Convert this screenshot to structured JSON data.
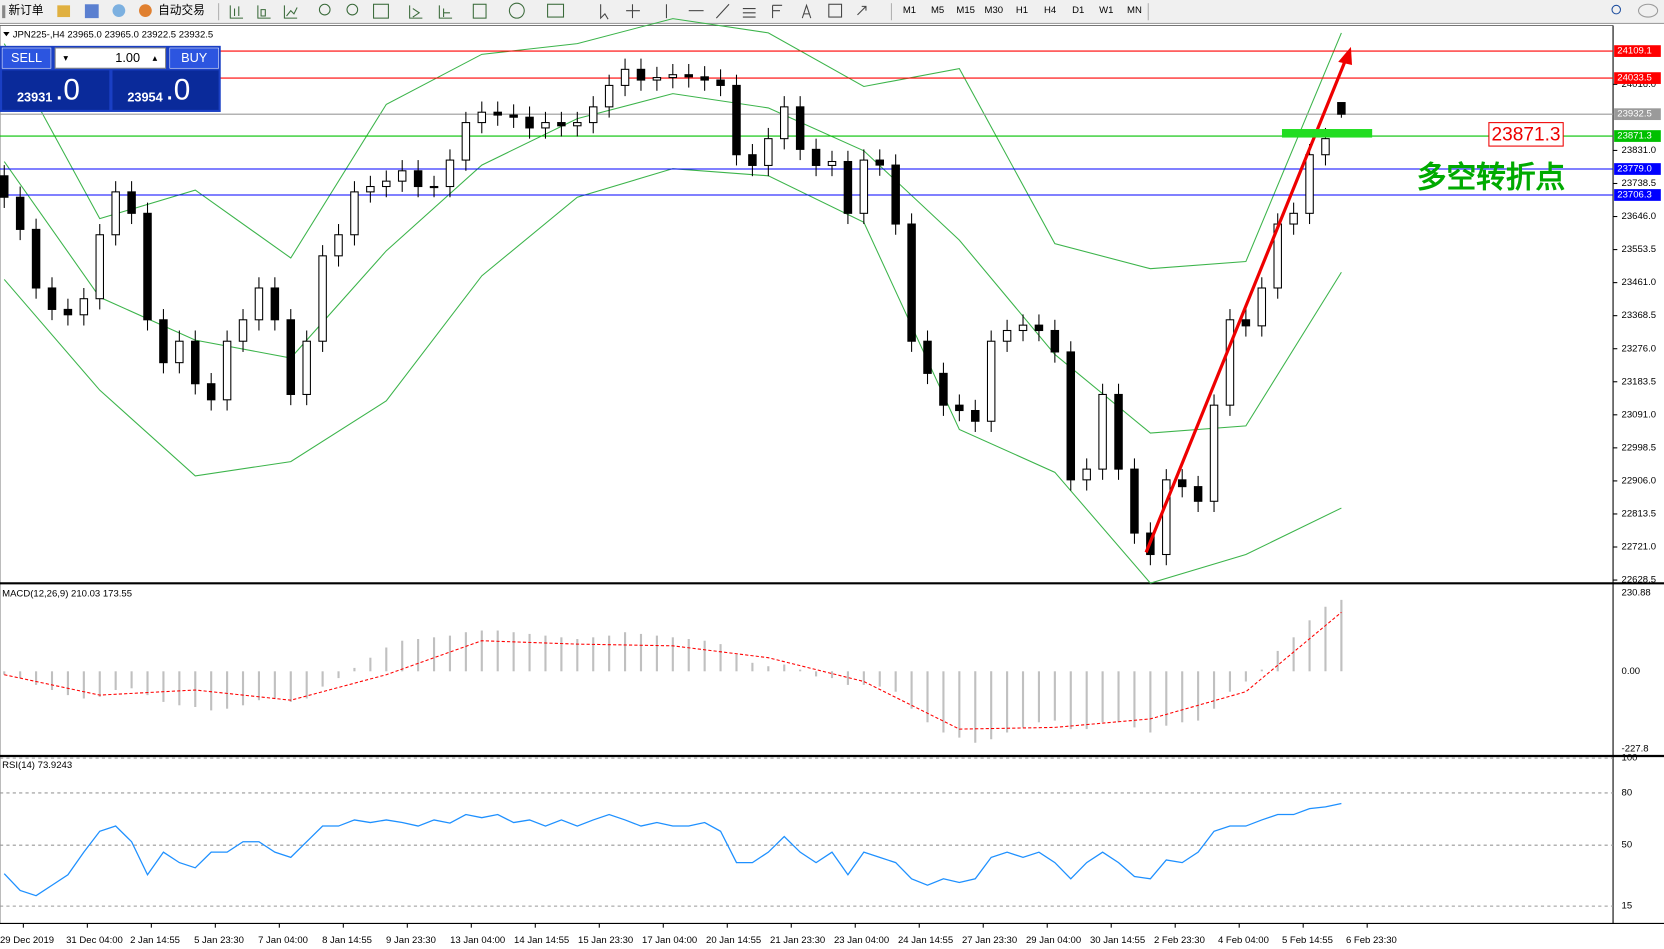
{
  "toolbar": {
    "new_order": "新订单",
    "auto_trading": "自动交易",
    "timeframes": [
      "M1",
      "M5",
      "M15",
      "M30",
      "H1",
      "H4",
      "D1",
      "W1",
      "MN"
    ]
  },
  "trade_panel": {
    "sell": "SELL",
    "buy": "BUY",
    "volume": "1.00",
    "sell_price": "23931",
    "sell_price_decimal": ".0",
    "buy_price": "23954",
    "buy_price_decimal": ".0"
  },
  "chart_data": [
    {
      "type": "candlestick",
      "title": "JPN225-,H4 23965.0 23965.0 23922.5 23932.5",
      "up_color": "#ffffff",
      "down_color": "#000000",
      "candles": [
        [
          23760,
          23790,
          23670,
          23700
        ],
        [
          23700,
          23730,
          23580,
          23610
        ],
        [
          23610,
          23640,
          23416,
          23446
        ],
        [
          23446,
          23476,
          23356,
          23386
        ],
        [
          23386,
          23416,
          23341,
          23371
        ],
        [
          23371,
          23446,
          23341,
          23416
        ],
        [
          23416,
          23625,
          23386,
          23595
        ],
        [
          23595,
          23745,
          23565,
          23715
        ],
        [
          23715,
          23745,
          23625,
          23655
        ],
        [
          23655,
          23685,
          23327,
          23357
        ],
        [
          23357,
          23387,
          23207,
          23237
        ],
        [
          23237,
          23327,
          23207,
          23297
        ],
        [
          23297,
          23327,
          23148,
          23178
        ],
        [
          23178,
          23208,
          23103,
          23133
        ],
        [
          23133,
          23327,
          23103,
          23297
        ],
        [
          23297,
          23387,
          23267,
          23357
        ],
        [
          23357,
          23476,
          23327,
          23446
        ],
        [
          23446,
          23476,
          23327,
          23357
        ],
        [
          23357,
          23387,
          23118,
          23148
        ],
        [
          23148,
          23327,
          23118,
          23297
        ],
        [
          23297,
          23566,
          23267,
          23536
        ],
        [
          23536,
          23625,
          23506,
          23595
        ],
        [
          23595,
          23745,
          23565,
          23715
        ],
        [
          23715,
          23760,
          23685,
          23730
        ],
        [
          23730,
          23775,
          23700,
          23745
        ],
        [
          23745,
          23804,
          23715,
          23774
        ],
        [
          23774,
          23804,
          23700,
          23730
        ],
        [
          23730,
          23760,
          23700,
          23730
        ],
        [
          23730,
          23834,
          23700,
          23804
        ],
        [
          23804,
          23939,
          23774,
          23909
        ],
        [
          23909,
          23968,
          23879,
          23938
        ],
        [
          23938,
          23968,
          23900,
          23930
        ],
        [
          23930,
          23960,
          23894,
          23924
        ],
        [
          23924,
          23954,
          23864,
          23894
        ],
        [
          23894,
          23939,
          23864,
          23909
        ],
        [
          23909,
          23939,
          23870,
          23900
        ],
        [
          23900,
          23939,
          23870,
          23909
        ],
        [
          23909,
          23983,
          23879,
          23953
        ],
        [
          23953,
          24043,
          23923,
          24013
        ],
        [
          24013,
          24088,
          23983,
          24058
        ],
        [
          24058,
          24088,
          23998,
          24028
        ],
        [
          24028,
          24065,
          23998,
          24035
        ],
        [
          24035,
          24073,
          24005,
          24043
        ],
        [
          24043,
          24073,
          24007,
          24037
        ],
        [
          24037,
          24067,
          23998,
          24028
        ],
        [
          24028,
          24058,
          23983,
          24013
        ],
        [
          24013,
          24043,
          23789,
          23819
        ],
        [
          23819,
          23849,
          23759,
          23789
        ],
        [
          23789,
          23894,
          23759,
          23864
        ],
        [
          23864,
          23983,
          23834,
          23953
        ],
        [
          23953,
          23983,
          23804,
          23834
        ],
        [
          23834,
          23864,
          23759,
          23789
        ],
        [
          23789,
          23830,
          23759,
          23800
        ],
        [
          23800,
          23830,
          23625,
          23655
        ],
        [
          23655,
          23834,
          23625,
          23804
        ],
        [
          23804,
          23834,
          23760,
          23790
        ],
        [
          23790,
          23820,
          23595,
          23625
        ],
        [
          23625,
          23655,
          23267,
          23297
        ],
        [
          23297,
          23327,
          23177,
          23207
        ],
        [
          23207,
          23237,
          23088,
          23118
        ],
        [
          23118,
          23148,
          23073,
          23103
        ],
        [
          23103,
          23133,
          23043,
          23073
        ],
        [
          23073,
          23327,
          23043,
          23297
        ],
        [
          23297,
          23357,
          23267,
          23327
        ],
        [
          23327,
          23372,
          23297,
          23342
        ],
        [
          23342,
          23372,
          23297,
          23327
        ],
        [
          23327,
          23357,
          23237,
          23267
        ],
        [
          23267,
          23297,
          22879,
          22909
        ],
        [
          22909,
          22969,
          22879,
          22939
        ],
        [
          22939,
          23178,
          22909,
          23148
        ],
        [
          23148,
          23178,
          22909,
          22939
        ],
        [
          22939,
          22969,
          22730,
          22760
        ],
        [
          22760,
          22790,
          22670,
          22700
        ],
        [
          22700,
          22939,
          22670,
          22909
        ],
        [
          22909,
          22939,
          22860,
          22890
        ],
        [
          22890,
          22920,
          22819,
          22849
        ],
        [
          22849,
          23148,
          22819,
          23118
        ],
        [
          23118,
          23387,
          23088,
          23357
        ],
        [
          23357,
          23387,
          23310,
          23340
        ],
        [
          23340,
          23476,
          23310,
          23446
        ],
        [
          23446,
          23655,
          23416,
          23625
        ],
        [
          23625,
          23685,
          23595,
          23655
        ],
        [
          23655,
          23849,
          23625,
          23819
        ],
        [
          23819,
          23894,
          23789,
          23864
        ],
        [
          23965,
          23965,
          23922.5,
          23932.5
        ]
      ],
      "bands": {
        "color": "#3cb44b",
        "x": [
          0,
          6,
          12,
          18,
          24,
          30,
          36,
          42,
          48,
          54,
          60,
          66,
          72,
          78,
          84
        ],
        "upper": [
          24130,
          23640,
          23720,
          23530,
          23960,
          24100,
          24130,
          24200,
          24160,
          24010,
          24060,
          23570,
          23500,
          23520,
          24160
        ],
        "middle": [
          23800,
          23420,
          23300,
          23250,
          23550,
          23790,
          23920,
          23990,
          23950,
          23830,
          23580,
          23260,
          23040,
          23060,
          23490
        ],
        "lower": [
          23470,
          23160,
          22920,
          22960,
          23130,
          23480,
          23700,
          23780,
          23760,
          23630,
          23050,
          22930,
          22620,
          22700,
          22830
        ]
      },
      "levels": [
        {
          "value": 24109.1,
          "color": "#ff0000"
        },
        {
          "value": 24033.5,
          "color": "#ff0000"
        },
        {
          "value": 23932.5,
          "color": "#9a9a9a"
        },
        {
          "value": 23871.3,
          "color": "#00c000"
        },
        {
          "value": 23779,
          "label": "23779.0",
          "color": "#0000ff"
        },
        {
          "value": 23706.3,
          "color": "#0000ff"
        }
      ],
      "callout": "23871.3",
      "pivot_text": "多空转折点",
      "ylim": [
        22622.5,
        24171.5
      ],
      "yticks": [
        {
          "value": 24016,
          "label": "24016.0"
        },
        {
          "value": 23831,
          "label": "23831.0"
        },
        23738.5,
        {
          "value": 23646,
          "label": "23646.0"
        },
        23553.5,
        {
          "value": 23461,
          "label": "23461.0"
        },
        23368.5,
        {
          "value": 23276,
          "label": "23276.0"
        },
        23183.5,
        {
          "value": 23091,
          "label": "23091.0"
        },
        22998.5,
        {
          "value": 22906,
          "label": "22906.0"
        },
        22813.5,
        {
          "value": 22721,
          "label": "22721.0"
        },
        22628.5
      ],
      "x_labels": [
        "29 Dec 2019",
        "31 Dec 04:00",
        "2 Jan 14:55",
        "5 Jan 23:30",
        "7 Jan 04:00",
        "8 Jan 14:55",
        "9 Jan 23:30",
        "13 Jan 04:00",
        "14 Jan 14:55",
        "15 Jan 23:30",
        "17 Jan 04:00",
        "20 Jan 14:55",
        "21 Jan 23:30",
        "23 Jan 04:00",
        "24 Jan 14:55",
        "27 Jan 23:30",
        "29 Jan 04:00",
        "30 Jan 14:55",
        "2 Feb 23:30",
        "4 Feb 04:00",
        "5 Feb 14:55",
        "6 Feb 23:30"
      ]
    },
    {
      "type": "macd",
      "title": "MACD(12,26,9) 210.03 173.55",
      "color": "#c0c0c0",
      "values": [
        -10,
        -20,
        -40,
        -55,
        -70,
        -80,
        -75,
        -55,
        -50,
        -70,
        -90,
        -100,
        -105,
        -115,
        -110,
        -100,
        -85,
        -80,
        -90,
        -80,
        -45,
        -20,
        10,
        40,
        70,
        90,
        95,
        100,
        105,
        115,
        120,
        120,
        115,
        110,
        105,
        100,
        95,
        100,
        105,
        115,
        110,
        105,
        100,
        95,
        90,
        80,
        50,
        25,
        15,
        20,
        5,
        -15,
        -20,
        -40,
        -40,
        -45,
        -60,
        -110,
        -150,
        -180,
        -195,
        -210,
        -200,
        -180,
        -165,
        -150,
        -145,
        -170,
        -170,
        -150,
        -150,
        -165,
        -180,
        -160,
        -150,
        -145,
        -110,
        -60,
        -30,
        5,
        60,
        100,
        150,
        190,
        210.03
      ],
      "signal": {
        "color": "#ff0000",
        "x": [
          0,
          6,
          12,
          18,
          24,
          30,
          36,
          42,
          48,
          54,
          60,
          66,
          72,
          78,
          84
        ],
        "values": [
          -10,
          -70,
          -55,
          -85,
          -10,
          90,
          80,
          75,
          40,
          -30,
          -170,
          -165,
          -140,
          -60,
          173.55
        ]
      },
      "ylim": [
        -246,
        249.6
      ],
      "yticks": [
        230.88,
        {
          "value": 0,
          "label": "0.00"
        },
        -227.8
      ]
    },
    {
      "type": "line",
      "title": "RSI(14) 73.9243",
      "color": "#1e90ff",
      "values": [
        33.6,
        24,
        21,
        27,
        33,
        46,
        58,
        61,
        52,
        33,
        46,
        40,
        37,
        46,
        46,
        52,
        52,
        46,
        43,
        52,
        61,
        61,
        64.5,
        63,
        64.5,
        63,
        61,
        64.5,
        62.7,
        67.6,
        65.8,
        67.6,
        63,
        64.5,
        61,
        64.5,
        61,
        64.5,
        67.6,
        64.5,
        61,
        63,
        61,
        61,
        63,
        58,
        40,
        40,
        46,
        55,
        46,
        40,
        46,
        33,
        46,
        43,
        40,
        30.7,
        27,
        30.7,
        28.6,
        30.7,
        43,
        46,
        43,
        46,
        40,
        30.7,
        40,
        46,
        40,
        32,
        30.7,
        41.5,
        40,
        46,
        58,
        61,
        61,
        64.5,
        67.6,
        67.6,
        71,
        72,
        73.9243
      ],
      "ylim": [
        6.3,
        100
      ],
      "yticks": [
        100,
        80,
        50,
        15
      ]
    }
  ]
}
